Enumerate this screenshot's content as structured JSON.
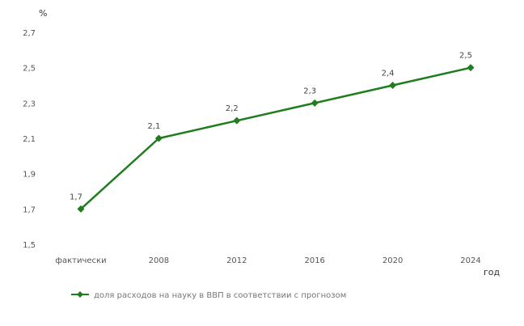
{
  "chart_data": {
    "type": "line",
    "y_unit": "%",
    "x_unit": "год",
    "categories": [
      "фактически",
      "2008",
      "2012",
      "2016",
      "2020",
      "2024"
    ],
    "series": [
      {
        "name": "доля расходов на науку в ВВП в соответствии с прогнозом",
        "values": [
          1.7,
          2.1,
          2.2,
          2.3,
          2.4,
          2.5
        ],
        "labels": [
          "1,7",
          "2,1",
          "2,2",
          "2,3",
          "2,4",
          "2,5"
        ],
        "color": "#1e7d1e"
      }
    ],
    "y_ticks": [
      "1,5",
      "1,7",
      "1,9",
      "2,1",
      "2,3",
      "2,5",
      "2,7"
    ],
    "ylim": [
      1.5,
      2.7
    ],
    "grid": false,
    "legend_position": "bottom"
  }
}
